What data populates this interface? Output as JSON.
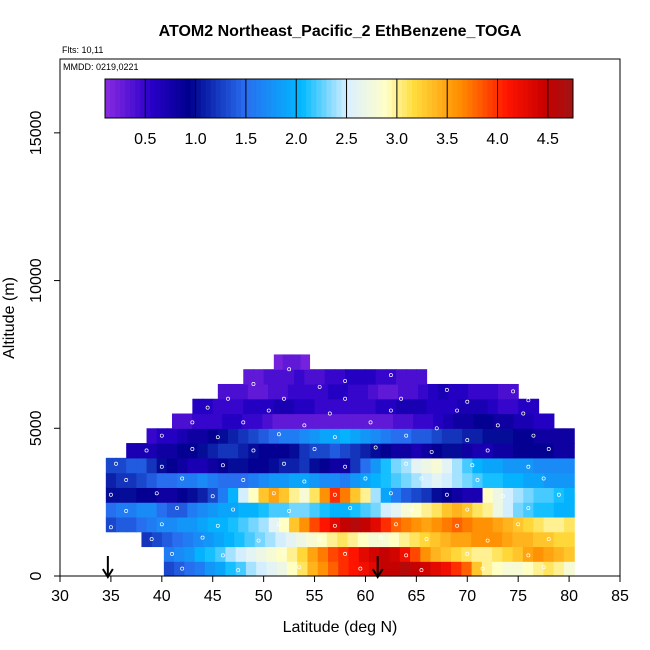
{
  "chart_data": {
    "type": "heatmap",
    "title": "ATOM2 Northeast_Pacific_2 EthBenzene_TOGA",
    "flights_label": "Flts: 10,11",
    "mmdd_label": "MMDD: 0219,0221",
    "xlabel": "Latitude (deg N)",
    "ylabel": "Altitude (m)",
    "xlim": [
      30,
      85
    ],
    "ylim": [
      0,
      17500
    ],
    "x_ticks": [
      "30",
      "35",
      "40",
      "45",
      "50",
      "55",
      "60",
      "65",
      "70",
      "75",
      "80",
      "85"
    ],
    "y_ticks": [
      "0",
      "5000",
      "10000",
      "15000"
    ],
    "colorbar": {
      "range": [
        0.1,
        4.75
      ],
      "ticks": [
        "0.5",
        "1.0",
        "1.5",
        "2.0",
        "2.5",
        "3.0",
        "3.5",
        "4.0",
        "4.5"
      ]
    },
    "bin_height_m": 500,
    "rows": [
      {
        "alt": 250,
        "x0": 40.2,
        "x1": 80.5,
        "values": [
          1.3,
          1.4,
          1.5,
          1.6,
          1.8,
          1.9,
          2.1,
          2.2,
          2.4,
          2.5,
          2.6,
          2.7,
          2.9,
          3.1,
          3.4,
          3.6,
          3.8,
          4.0,
          4.1,
          4.2,
          4.3,
          4.5,
          4.5,
          4.6,
          4.5,
          4.4,
          4.3,
          4.2,
          4.0,
          3.8,
          3.3,
          3.0,
          2.9,
          2.8,
          2.8,
          2.9,
          3.0,
          3.1,
          3.0,
          2.8
        ]
      },
      {
        "alt": 750,
        "x0": 40.2,
        "x1": 80.5,
        "values": [
          1.6,
          1.7,
          1.8,
          2.0,
          2.1,
          2.2,
          2.4,
          2.5,
          2.6,
          2.7,
          2.8,
          2.9,
          3.0,
          3.2,
          3.5,
          3.7,
          3.9,
          4.0,
          4.1,
          4.3,
          4.4,
          4.5,
          4.4,
          4.2,
          3.9,
          3.6,
          3.4,
          3.3,
          3.2,
          3.1,
          3.0,
          3.0,
          3.1,
          3.2,
          3.3,
          3.5,
          3.6,
          3.5,
          3.4,
          3.3
        ]
      },
      {
        "alt": 1250,
        "x0": 38.0,
        "x1": 80.5,
        "values": [
          1.2,
          1.3,
          1.4,
          1.5,
          1.6,
          1.7,
          1.8,
          1.9,
          2.0,
          2.1,
          2.2,
          2.3,
          2.4,
          2.5,
          2.6,
          2.7,
          2.8,
          2.9,
          3.0,
          3.1,
          3.0,
          2.9,
          2.8,
          2.8,
          2.9,
          3.0,
          3.1,
          3.2,
          3.3,
          3.4,
          3.5,
          3.5,
          3.6,
          3.6,
          3.6,
          3.5,
          3.4,
          3.4,
          3.3,
          3.3,
          3.2,
          3.2
        ]
      },
      {
        "alt": 1750,
        "x0": 34.5,
        "x1": 80.5,
        "values": [
          1.3,
          1.4,
          1.4,
          1.5,
          1.6,
          1.7,
          1.7,
          1.8,
          1.8,
          1.9,
          2.0,
          2.0,
          2.1,
          2.2,
          2.3,
          2.4,
          2.6,
          2.9,
          3.3,
          3.6,
          3.9,
          4.1,
          4.3,
          4.5,
          4.6,
          4.5,
          4.3,
          4.0,
          3.8,
          3.7,
          3.6,
          3.5,
          3.6,
          3.7,
          3.8,
          3.7,
          3.6,
          3.6,
          3.5,
          3.4,
          3.3,
          3.2,
          3.1,
          3.0,
          3.0,
          3.1
        ]
      },
      {
        "alt": 2250,
        "x0": 34.5,
        "x1": 80.5,
        "values": [
          1.5,
          1.6,
          1.6,
          1.7,
          1.7,
          1.5,
          1.4,
          1.4,
          1.6,
          1.7,
          1.8,
          1.9,
          1.9,
          2.0,
          2.0,
          2.1,
          2.2,
          2.2,
          2.3,
          2.3,
          2.2,
          2.1,
          2.0,
          2.0,
          2.1,
          2.2,
          2.3,
          2.5,
          2.6,
          2.8,
          2.9,
          3.0,
          3.1,
          3.3,
          3.4,
          3.3,
          3.1,
          3.0,
          2.7,
          2.5,
          2.3,
          2.2,
          2.1,
          2.1,
          2.0,
          2.0
        ]
      },
      {
        "alt": 2750,
        "x0": 34.5,
        "x1": 80.5,
        "values": [
          1.0,
          1.0,
          1.0,
          0.9,
          0.9,
          0.8,
          0.8,
          0.9,
          1.0,
          1.1,
          1.3,
          1.6,
          2.0,
          2.5,
          2.9,
          3.3,
          3.5,
          3.3,
          3.0,
          2.8,
          3.1,
          3.6,
          4.0,
          3.7,
          3.3,
          3.0,
          2.4,
          1.9,
          1.6,
          1.4,
          1.3,
          1.2,
          1.0,
          0.9,
          0.8,
          0.7,
          0.7,
          2.9,
          2.7,
          2.5,
          2.4,
          2.3,
          2.2,
          2.2,
          2.1,
          2.0
        ]
      },
      {
        "alt": 3250,
        "x0": 34.5,
        "x1": 80.5,
        "values": [
          1.1,
          1.2,
          1.2,
          1.3,
          1.4,
          1.5,
          1.5,
          1.6,
          1.6,
          1.7,
          1.6,
          1.5,
          1.5,
          1.5,
          1.6,
          1.7,
          1.8,
          1.8,
          1.9,
          1.9,
          1.8,
          1.7,
          1.7,
          1.6,
          1.8,
          1.9,
          2.0,
          2.1,
          2.2,
          2.3,
          2.4,
          2.5,
          2.6,
          2.5,
          2.4,
          2.3,
          2.2,
          2.1,
          2.1,
          2.0,
          2.0,
          1.9,
          1.9,
          1.8,
          1.8,
          1.8
        ]
      },
      {
        "alt": 3750,
        "x0": 34.5,
        "x1": 80.5,
        "values": [
          1.3,
          1.3,
          1.4,
          1.4,
          1.2,
          1.0,
          0.9,
          0.8,
          0.7,
          0.7,
          0.8,
          0.9,
          1.0,
          1.0,
          0.9,
          0.9,
          1.0,
          1.1,
          1.1,
          1.2,
          1.0,
          0.9,
          0.8,
          0.8,
          1.2,
          1.5,
          1.8,
          2.1,
          2.3,
          2.4,
          2.6,
          2.7,
          2.8,
          2.6,
          2.4,
          2.2,
          2.0,
          1.9,
          1.9,
          1.8,
          1.8,
          1.8,
          1.7,
          1.7,
          1.7,
          1.7
        ]
      },
      {
        "alt": 4250,
        "x0": 36.5,
        "x1": 80.5,
        "values": [
          0.7,
          0.7,
          0.7,
          0.8,
          0.8,
          0.9,
          0.9,
          1.0,
          1.1,
          1.2,
          1.2,
          1.1,
          1.0,
          0.9,
          0.9,
          0.9,
          1.0,
          1.2,
          1.3,
          1.3,
          1.4,
          1.3,
          1.2,
          1.1,
          1.0,
          0.9,
          0.8,
          0.8,
          0.7,
          0.8,
          0.9,
          1.0,
          1.0,
          0.8,
          0.7,
          0.7,
          0.8,
          0.8,
          0.9,
          0.9,
          0.9,
          0.9,
          0.8,
          0.8
        ]
      },
      {
        "alt": 4750,
        "x0": 38.5,
        "x1": 80.5,
        "values": [
          0.5,
          0.6,
          0.6,
          0.7,
          0.8,
          0.8,
          0.9,
          1.0,
          1.1,
          1.2,
          1.3,
          1.4,
          1.5,
          1.6,
          1.6,
          1.7,
          1.8,
          1.9,
          1.9,
          2.0,
          1.9,
          1.8,
          1.7,
          1.6,
          1.5,
          1.5,
          1.4,
          1.4,
          1.3,
          1.2,
          1.2,
          1.1,
          1.1,
          1.0,
          1.0,
          1.0,
          0.9,
          0.9,
          0.8,
          0.8,
          0.8,
          0.8
        ]
      },
      {
        "alt": 5250,
        "x0": 41.0,
        "x1": 78.5,
        "values": [
          0.4,
          0.4,
          0.5,
          0.5,
          0.5,
          0.6,
          0.6,
          0.5,
          0.5,
          0.4,
          0.3,
          0.3,
          0.3,
          0.3,
          0.3,
          0.3,
          0.3,
          0.3,
          0.3,
          0.3,
          0.3,
          0.3,
          0.4,
          0.4,
          0.5,
          0.5,
          0.6,
          0.7,
          0.8,
          0.8,
          0.9,
          0.9,
          0.8,
          0.8,
          0.7,
          0.7,
          0.6,
          0.6
        ]
      },
      {
        "alt": 5750,
        "x0": 43.0,
        "x1": 77.0,
        "values": [
          0.6,
          0.6,
          0.5,
          0.5,
          0.5,
          0.6,
          0.6,
          0.6,
          0.7,
          0.7,
          0.6,
          0.6,
          0.5,
          0.5,
          0.5,
          0.5,
          0.5,
          0.5,
          0.6,
          0.6,
          0.7,
          0.7,
          0.7,
          0.6,
          0.6,
          0.6,
          0.7,
          0.7,
          0.7,
          0.6,
          0.5,
          0.5,
          0.6,
          0.6
        ]
      },
      {
        "alt": 6250,
        "x0": 45.5,
        "x1": 75.0,
        "values": [
          0.4,
          0.4,
          0.4,
          0.3,
          0.3,
          0.4,
          0.4,
          0.5,
          0.5,
          0.5,
          0.5,
          0.6,
          0.6,
          0.5,
          0.5,
          0.4,
          0.3,
          0.3,
          0.4,
          0.4,
          0.5,
          0.6,
          0.7,
          0.6,
          0.6,
          0.5,
          0.5,
          0.5,
          0.4,
          0.4
        ]
      },
      {
        "alt": 6750,
        "x0": 48.0,
        "x1": 66.0,
        "values": [
          0.3,
          0.3,
          0.4,
          0.4,
          0.4,
          0.5,
          0.4,
          0.4,
          0.5,
          0.5,
          0.6,
          0.6,
          0.6,
          0.5,
          0.5,
          0.4,
          0.4,
          0.4
        ]
      },
      {
        "alt": 7250,
        "x0": 51.0,
        "x1": 54.5,
        "values": [
          0.2,
          0.3,
          0.3,
          0.2
        ]
      }
    ],
    "markers": [
      {
        "x": 34.7,
        "label": "arrow"
      },
      {
        "x": 61.2,
        "label": "arrow"
      }
    ],
    "samples": [
      [
        52.5,
        7000
      ],
      [
        58,
        6600
      ],
      [
        62.5,
        6800
      ],
      [
        49,
        6500
      ],
      [
        55.5,
        6400
      ],
      [
        68,
        6300
      ],
      [
        74.5,
        6250
      ],
      [
        46.5,
        6000
      ],
      [
        52,
        6000
      ],
      [
        58,
        6000
      ],
      [
        63.5,
        6000
      ],
      [
        70,
        5900
      ],
      [
        76,
        5950
      ],
      [
        44.5,
        5700
      ],
      [
        50.5,
        5600
      ],
      [
        56.5,
        5500
      ],
      [
        62.5,
        5600
      ],
      [
        69,
        5600
      ],
      [
        75.5,
        5500
      ],
      [
        43,
        5200
      ],
      [
        48,
        5200
      ],
      [
        54,
        5100
      ],
      [
        60.5,
        5200
      ],
      [
        67,
        5000
      ],
      [
        73,
        5100
      ],
      [
        40,
        4750
      ],
      [
        45.5,
        4700
      ],
      [
        51.5,
        4800
      ],
      [
        57,
        4700
      ],
      [
        64,
        4750
      ],
      [
        70,
        4600
      ],
      [
        76.5,
        4750
      ],
      [
        38.5,
        4250
      ],
      [
        43,
        4300
      ],
      [
        49,
        4250
      ],
      [
        55,
        4300
      ],
      [
        61,
        4350
      ],
      [
        66.5,
        4200
      ],
      [
        72,
        4250
      ],
      [
        78,
        4300
      ],
      [
        35.5,
        3800
      ],
      [
        40,
        3700
      ],
      [
        46,
        3750
      ],
      [
        52,
        3800
      ],
      [
        58,
        3700
      ],
      [
        64,
        3800
      ],
      [
        70.5,
        3750
      ],
      [
        76,
        3700
      ],
      [
        36.5,
        3250
      ],
      [
        42,
        3300
      ],
      [
        48,
        3250
      ],
      [
        54,
        3200
      ],
      [
        60,
        3300
      ],
      [
        65.5,
        3300
      ],
      [
        71,
        3250
      ],
      [
        77.5,
        3300
      ],
      [
        35,
        2750
      ],
      [
        39.5,
        2800
      ],
      [
        45,
        2700
      ],
      [
        51,
        2800
      ],
      [
        57,
        2750
      ],
      [
        62.5,
        2800
      ],
      [
        68,
        2750
      ],
      [
        73.5,
        2700
      ],
      [
        79,
        2750
      ],
      [
        36.5,
        2200
      ],
      [
        41.5,
        2300
      ],
      [
        47,
        2250
      ],
      [
        52.5,
        2200
      ],
      [
        58.5,
        2300
      ],
      [
        64.5,
        2250
      ],
      [
        70,
        2250
      ],
      [
        76,
        2300
      ],
      [
        35,
        1650
      ],
      [
        40,
        1750
      ],
      [
        45.5,
        1700
      ],
      [
        51.5,
        1750
      ],
      [
        57,
        1700
      ],
      [
        63,
        1750
      ],
      [
        69,
        1700
      ],
      [
        75,
        1750
      ],
      [
        39,
        1250
      ],
      [
        44,
        1300
      ],
      [
        49.5,
        1200
      ],
      [
        55.5,
        1250
      ],
      [
        61.5,
        1300
      ],
      [
        66,
        1250
      ],
      [
        72,
        1200
      ],
      [
        78,
        1250
      ],
      [
        41,
        750
      ],
      [
        46,
        700
      ],
      [
        52,
        800
      ],
      [
        58,
        750
      ],
      [
        64,
        700
      ],
      [
        70,
        750
      ],
      [
        76,
        700
      ],
      [
        42,
        250
      ],
      [
        47.5,
        200
      ],
      [
        53.5,
        300
      ],
      [
        59.5,
        250
      ],
      [
        65.5,
        200
      ],
      [
        71.5,
        250
      ],
      [
        77.5,
        300
      ]
    ]
  }
}
